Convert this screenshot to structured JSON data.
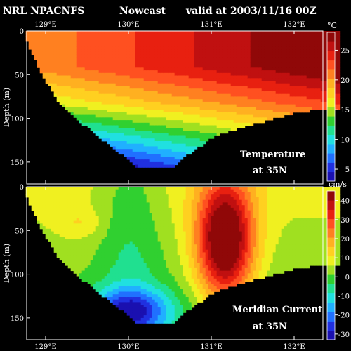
{
  "header": {
    "model": "NRL NPACNFS",
    "kind": "Nowcast",
    "valid": "valid at 2003/11/16 00Z"
  },
  "chart_data": [
    {
      "type": "heatmap",
      "title": "Temperature",
      "subtitle": "at 35N",
      "ylabel": "Depth (m)",
      "x_ticks": [
        "129°E",
        "130°E",
        "131°E",
        "132°E"
      ],
      "y_ticks": [
        "0",
        "50",
        "100",
        "150"
      ],
      "colorbar_unit": "°C",
      "colorbar_ticks": [
        "5",
        "10",
        "15",
        "20",
        "25"
      ],
      "colorbar_range": [
        3,
        28
      ],
      "bottom_profile_depth_m": [
        40,
        75,
        95,
        110,
        125,
        140,
        155,
        155,
        140,
        120,
        110,
        100,
        92,
        88
      ],
      "bottom_profile_lon": [
        128.9,
        129.1,
        129.3,
        129.5,
        129.7,
        129.9,
        130.1,
        130.5,
        130.7,
        131.0,
        131.3,
        131.7,
        132.0,
        132.3
      ]
    },
    {
      "type": "heatmap",
      "title": "Meridian Current",
      "subtitle": "at 35N",
      "ylabel": "Depth (m)",
      "x_ticks": [
        "129°E",
        "130°E",
        "131°E",
        "132°E"
      ],
      "y_ticks": [
        "0",
        "50",
        "100",
        "150"
      ],
      "colorbar_unit": "cm/s",
      "colorbar_ticks": [
        "-30",
        "-20",
        "-10",
        "0",
        "10",
        "20",
        "30",
        "40"
      ],
      "colorbar_range": [
        -33,
        45
      ]
    }
  ],
  "colors": {
    "palette": [
      "#1a10b0",
      "#2030e0",
      "#2070ff",
      "#20b0ff",
      "#20e0e0",
      "#20e090",
      "#30d030",
      "#a0e020",
      "#f0f020",
      "#ffd020",
      "#ffb020",
      "#ff8020",
      "#ff5020",
      "#e82010",
      "#c01010",
      "#900808"
    ]
  }
}
